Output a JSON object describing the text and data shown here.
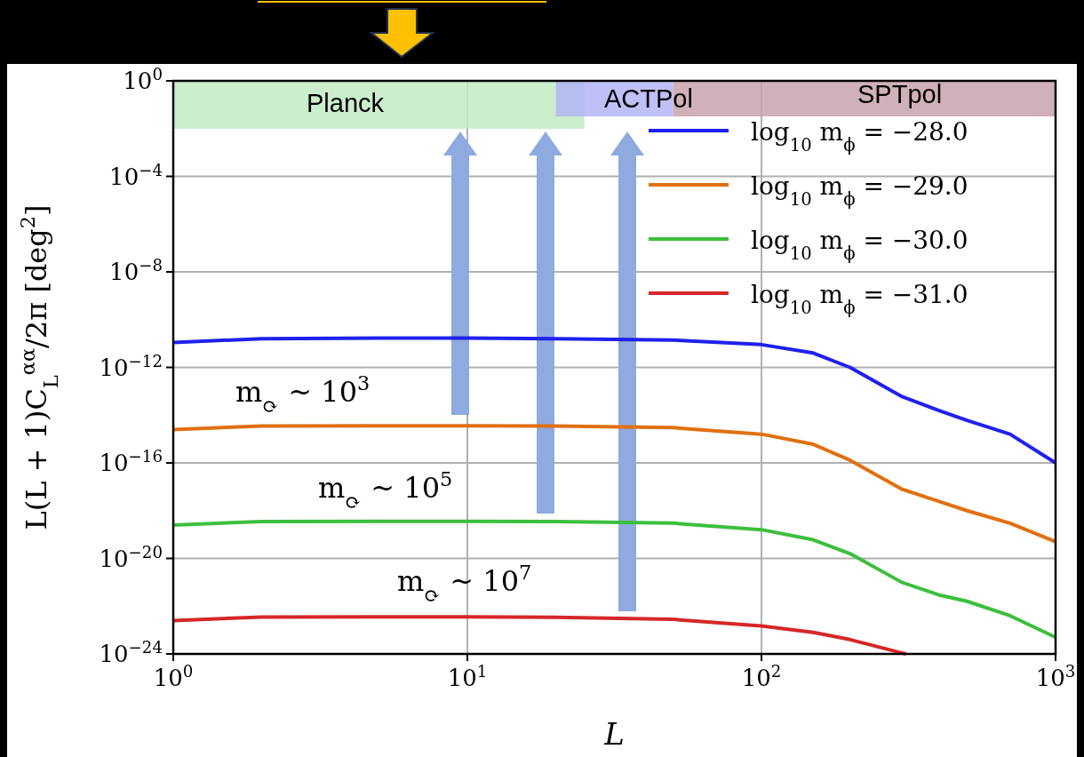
{
  "chart_data": {
    "type": "line",
    "xlabel": "L",
    "ylabel": "L(L + 1)C$_{L}$$^{αα}$/2π [deg$^{2}$]",
    "log": "xy",
    "grid": true,
    "legend": "top right",
    "line_style": "solid",
    "xlim": [
      1,
      1000
    ],
    "xticks": [
      {
        "value": 1,
        "label": "10$^{0}$"
      },
      {
        "value": 10,
        "label": "10$^{1}$"
      },
      {
        "value": 100,
        "label": "10$^{2}$"
      },
      {
        "value": 1000,
        "label": "10$^{3}$"
      }
    ],
    "ylim": [
      1e-24,
      1
    ],
    "yticks": [
      {
        "value": 1e-24,
        "label": "10$^{−24}$"
      },
      {
        "value": 1e-20,
        "label": "10$^{−20}$"
      },
      {
        "value": 1e-16,
        "label": "10$^{−16}$"
      },
      {
        "value": 1e-12,
        "label": "10$^{−12}$"
      },
      {
        "value": 1e-08,
        "label": "10$^{−8}$"
      },
      {
        "value": 0.0001,
        "label": "10$^{−4}$"
      },
      {
        "value": 1,
        "label": "10$^{0}$"
      }
    ],
    "x": [
      1,
      2,
      5,
      10,
      20,
      50,
      100,
      150,
      200,
      300,
      400,
      500,
      700,
      1000
    ],
    "series": [
      {
        "name": "log$_{10}$ m$_{ϕ}$ = −28.0",
        "color": "#2020ee",
        "values": [
          1.1e-11,
          1.6e-11,
          1.7e-11,
          1.7e-11,
          1.6e-11,
          1.4e-11,
          9e-12,
          4e-12,
          1e-12,
          6e-14,
          1.6e-14,
          6e-15,
          1.6e-15,
          1e-16
        ]
      },
      {
        "name": "log$_{10}$ m$_{ϕ}$ = −29.0",
        "color": "#e07010",
        "values": [
          2.5e-15,
          3.5e-15,
          3.6e-15,
          3.6e-15,
          3.5e-15,
          3e-15,
          1.6e-15,
          6e-16,
          1.3e-16,
          8e-18,
          2.5e-18,
          1e-18,
          3e-19,
          5e-20
        ]
      },
      {
        "name": "log$_{10}$ m$_{ϕ}$ = −30.0",
        "color": "#3cbf3c",
        "values": [
          2.5e-19,
          3.5e-19,
          3.6e-19,
          3.6e-19,
          3.5e-19,
          3e-19,
          1.6e-19,
          6e-20,
          1.6e-20,
          1e-21,
          3e-22,
          1.6e-22,
          4e-23,
          5e-24
        ]
      },
      {
        "name": "log$_{10}$ m$_{ϕ}$ = −31.0",
        "color": "#d62728",
        "x": [
          1,
          2,
          5,
          10,
          20,
          50,
          100,
          150,
          200,
          300,
          310
        ],
        "values": [
          2.5e-23,
          3.5e-23,
          3.6e-23,
          3.6e-23,
          3.4e-23,
          2.8e-23,
          1.5e-23,
          8e-24,
          4e-24,
          1.1e-24,
          1e-24
        ]
      }
    ],
    "bands": [
      {
        "axis": "x",
        "from": 1,
        "to": 25,
        "label": "Planck",
        "color": "#c2ebc4"
      },
      {
        "axis": "x",
        "from": 20,
        "to": 50,
        "label": "ACTPol",
        "color": "#b3b5f5"
      },
      {
        "axis": "x",
        "from": 50,
        "to": 1000,
        "label": "SPTpol",
        "color": "#c9a3ad"
      }
    ],
    "annotations": [
      "m$_{⟳}$ ~ 10$^{3}$",
      "m$_{⟳}$ ~ 10$^{5}$",
      "m$_{⟳}$ ~ 10$^{7}$"
    ]
  }
}
